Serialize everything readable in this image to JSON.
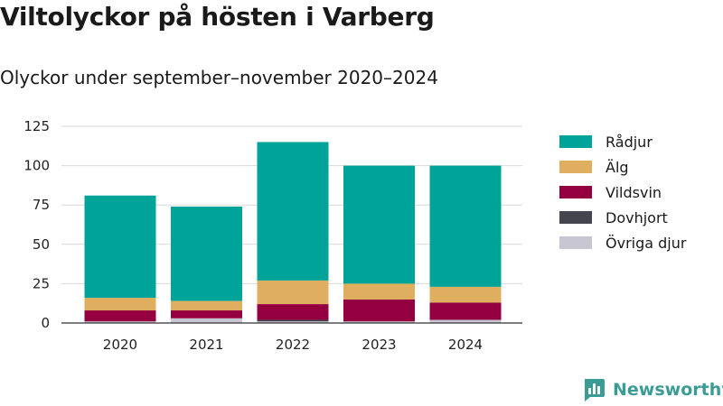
{
  "title": "Viltolyckor på hösten i Varberg",
  "subtitle": "Olyckor under september–november 2020–2024",
  "brand": {
    "name": "Newsworthy",
    "icon": "newsworthy-logo-icon"
  },
  "chart_data": {
    "type": "bar",
    "stacked": true,
    "title": "Viltolyckor på hösten i Varberg",
    "subtitle": "Olyckor under september–november 2020–2024",
    "xlabel": "",
    "ylabel": "",
    "categories": [
      "2020",
      "2021",
      "2022",
      "2023",
      "2024"
    ],
    "ylim": [
      0,
      125
    ],
    "yticks": [
      0,
      25,
      50,
      75,
      100,
      125
    ],
    "grid": true,
    "legend_position": "right",
    "series": [
      {
        "name": "Övriga djur",
        "color": "#c8c6d3",
        "values": [
          1,
          3,
          1,
          1,
          2
        ]
      },
      {
        "name": "Dovhjort",
        "color": "#454550",
        "values": [
          0,
          0,
          1,
          0,
          0
        ]
      },
      {
        "name": "Vildsvin",
        "color": "#94003f",
        "values": [
          7,
          5,
          10,
          14,
          11
        ]
      },
      {
        "name": "Älg",
        "color": "#dfaf5f",
        "values": [
          8,
          6,
          15,
          10,
          10
        ]
      },
      {
        "name": "Rådjur",
        "color": "#00a397",
        "values": [
          65,
          60,
          88,
          75,
          77
        ]
      }
    ],
    "legend_order": [
      "Rådjur",
      "Älg",
      "Vildsvin",
      "Dovhjort",
      "Övriga djur"
    ]
  }
}
